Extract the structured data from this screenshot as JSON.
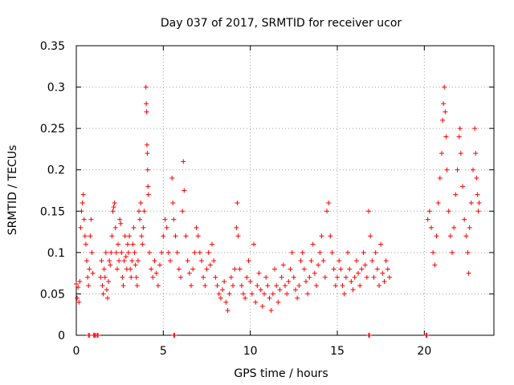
{
  "chart_data": {
    "type": "scatter",
    "title": "Day 037 of 2017, SRMTID for receiver ucor",
    "xlabel": "GPS time / hours",
    "ylabel": "SRMTID / TECUs",
    "xlim": [
      0,
      24
    ],
    "ylim": [
      0,
      0.35
    ],
    "xticks": [
      0,
      5,
      10,
      15,
      20
    ],
    "xtick_labels": [
      "0",
      "5",
      "10",
      "15",
      "20"
    ],
    "yticks": [
      0,
      0.05,
      0.1,
      0.15,
      0.2,
      0.25,
      0.3,
      0.35
    ],
    "ytick_labels": [
      "0",
      "0.05",
      "0.1",
      "0.15",
      "0.2",
      "0.25",
      "0.3",
      "0.35"
    ],
    "grid": true,
    "marker": "+",
    "color": "#ff0000",
    "series": [
      {
        "name": "SRMTID",
        "points": [
          [
            0.0,
            0.062
          ],
          [
            0.05,
            0.045
          ],
          [
            0.1,
            0.058
          ],
          [
            0.15,
            0.04
          ],
          [
            0.2,
            0.065
          ],
          [
            0.25,
            0.13
          ],
          [
            0.3,
            0.15
          ],
          [
            0.35,
            0.16
          ],
          [
            0.4,
            0.17
          ],
          [
            0.45,
            0.14
          ],
          [
            0.5,
            0.12
          ],
          [
            0.55,
            0.11
          ],
          [
            0.6,
            0.09
          ],
          [
            0.65,
            0.07
          ],
          [
            0.7,
            0.06
          ],
          [
            0.75,
            0.08
          ],
          [
            0.8,
            0.12
          ],
          [
            0.85,
            0.14
          ],
          [
            0.9,
            0.1
          ],
          [
            0.95,
            0.075
          ],
          [
            0.7,
            0.0
          ],
          [
            0.75,
            0.0
          ],
          [
            1.0,
            0.0
          ],
          [
            1.05,
            0.0
          ],
          [
            1.1,
            0.0
          ],
          [
            1.2,
            0.0
          ],
          [
            1.25,
            0.0
          ],
          [
            1.4,
            0.07
          ],
          [
            1.45,
            0.09
          ],
          [
            1.5,
            0.06
          ],
          [
            1.55,
            0.05
          ],
          [
            1.6,
            0.08
          ],
          [
            1.65,
            0.07
          ],
          [
            1.7,
            0.1
          ],
          [
            1.75,
            0.055
          ],
          [
            1.8,
            0.045
          ],
          [
            1.85,
            0.065
          ],
          [
            1.9,
            0.09
          ],
          [
            1.95,
            0.085
          ],
          [
            2.0,
            0.1
          ],
          [
            2.05,
            0.12
          ],
          [
            2.1,
            0.15
          ],
          [
            2.15,
            0.155
          ],
          [
            2.2,
            0.16
          ],
          [
            2.25,
            0.13
          ],
          [
            2.3,
            0.1
          ],
          [
            2.35,
            0.08
          ],
          [
            2.4,
            0.11
          ],
          [
            2.45,
            0.09
          ],
          [
            2.5,
            0.14
          ],
          [
            2.55,
            0.135
          ],
          [
            2.6,
            0.1
          ],
          [
            2.65,
            0.07
          ],
          [
            2.7,
            0.06
          ],
          [
            2.75,
            0.09
          ],
          [
            2.8,
            0.12
          ],
          [
            2.85,
            0.095
          ],
          [
            2.9,
            0.08
          ],
          [
            2.95,
            0.11
          ],
          [
            3.0,
            0.1
          ],
          [
            3.05,
            0.12
          ],
          [
            3.1,
            0.08
          ],
          [
            3.15,
            0.07
          ],
          [
            3.2,
            0.09
          ],
          [
            3.25,
            0.11
          ],
          [
            3.3,
            0.13
          ],
          [
            3.35,
            0.1
          ],
          [
            3.4,
            0.085
          ],
          [
            3.45,
            0.07
          ],
          [
            3.5,
            0.06
          ],
          [
            3.55,
            0.09
          ],
          [
            3.6,
            0.15
          ],
          [
            3.65,
            0.14
          ],
          [
            3.7,
            0.16
          ],
          [
            3.75,
            0.12
          ],
          [
            3.8,
            0.11
          ],
          [
            3.85,
            0.13
          ],
          [
            3.9,
            0.15
          ],
          [
            4.0,
            0.3
          ],
          [
            4.02,
            0.28
          ],
          [
            4.04,
            0.27
          ],
          [
            4.06,
            0.23
          ],
          [
            4.08,
            0.22
          ],
          [
            4.1,
            0.2
          ],
          [
            4.12,
            0.18
          ],
          [
            4.14,
            0.17
          ],
          [
            4.2,
            0.1
          ],
          [
            4.3,
            0.08
          ],
          [
            4.4,
            0.07
          ],
          [
            4.5,
            0.09
          ],
          [
            4.6,
            0.075
          ],
          [
            4.7,
            0.06
          ],
          [
            4.8,
            0.085
          ],
          [
            4.9,
            0.1
          ],
          [
            5.0,
            0.12
          ],
          [
            5.1,
            0.14
          ],
          [
            5.2,
            0.13
          ],
          [
            5.3,
            0.1
          ],
          [
            5.4,
            0.09
          ],
          [
            5.5,
            0.19
          ],
          [
            5.55,
            0.16
          ],
          [
            5.6,
            0.14
          ],
          [
            5.7,
            0.12
          ],
          [
            5.8,
            0.1
          ],
          [
            5.9,
            0.08
          ],
          [
            6.0,
            0.07
          ],
          [
            6.1,
            0.15
          ],
          [
            6.15,
            0.21
          ],
          [
            6.2,
            0.175
          ],
          [
            6.3,
            0.12
          ],
          [
            6.4,
            0.09
          ],
          [
            6.5,
            0.075
          ],
          [
            6.6,
            0.06
          ],
          [
            6.7,
            0.08
          ],
          [
            6.8,
            0.1
          ],
          [
            6.9,
            0.13
          ],
          [
            5.6,
            0.0
          ],
          [
            5.65,
            0.0
          ],
          [
            7.0,
            0.12
          ],
          [
            7.1,
            0.1
          ],
          [
            7.2,
            0.09
          ],
          [
            7.3,
            0.07
          ],
          [
            7.4,
            0.06
          ],
          [
            7.5,
            0.08
          ],
          [
            7.6,
            0.1
          ],
          [
            7.7,
            0.085
          ],
          [
            7.8,
            0.11
          ],
          [
            7.9,
            0.09
          ],
          [
            8.0,
            0.07
          ],
          [
            8.1,
            0.06
          ],
          [
            8.2,
            0.05
          ],
          [
            8.3,
            0.045
          ],
          [
            8.4,
            0.055
          ],
          [
            8.5,
            0.065
          ],
          [
            8.6,
            0.04
          ],
          [
            8.7,
            0.03
          ],
          [
            8.8,
            0.05
          ],
          [
            8.9,
            0.07
          ],
          [
            9.0,
            0.06
          ],
          [
            9.1,
            0.08
          ],
          [
            9.2,
            0.13
          ],
          [
            9.25,
            0.16
          ],
          [
            9.3,
            0.12
          ],
          [
            9.4,
            0.08
          ],
          [
            9.5,
            0.06
          ],
          [
            9.6,
            0.05
          ],
          [
            9.7,
            0.045
          ],
          [
            9.8,
            0.07
          ],
          [
            9.9,
            0.09
          ],
          [
            10.0,
            0.065
          ],
          [
            10.1,
            0.05
          ],
          [
            10.2,
            0.11
          ],
          [
            10.3,
            0.04
          ],
          [
            10.4,
            0.06
          ],
          [
            10.5,
            0.075
          ],
          [
            10.6,
            0.055
          ],
          [
            10.7,
            0.035
          ],
          [
            10.8,
            0.05
          ],
          [
            10.9,
            0.07
          ],
          [
            11.0,
            0.06
          ],
          [
            11.1,
            0.045
          ],
          [
            11.2,
            0.03
          ],
          [
            11.3,
            0.05
          ],
          [
            11.4,
            0.08
          ],
          [
            11.5,
            0.06
          ],
          [
            11.6,
            0.04
          ],
          [
            11.7,
            0.055
          ],
          [
            11.8,
            0.07
          ],
          [
            11.9,
            0.085
          ],
          [
            12.0,
            0.06
          ],
          [
            12.1,
            0.05
          ],
          [
            12.2,
            0.065
          ],
          [
            12.3,
            0.08
          ],
          [
            12.4,
            0.1
          ],
          [
            12.5,
            0.07
          ],
          [
            12.6,
            0.055
          ],
          [
            12.7,
            0.045
          ],
          [
            12.8,
            0.06
          ],
          [
            12.9,
            0.09
          ],
          [
            13.0,
            0.1
          ],
          [
            13.1,
            0.08
          ],
          [
            13.2,
            0.065
          ],
          [
            13.3,
            0.05
          ],
          [
            13.4,
            0.07
          ],
          [
            13.5,
            0.09
          ],
          [
            13.6,
            0.11
          ],
          [
            13.7,
            0.075
          ],
          [
            13.8,
            0.06
          ],
          [
            13.9,
            0.085
          ],
          [
            14.0,
            0.1
          ],
          [
            14.1,
            0.12
          ],
          [
            14.2,
            0.09
          ],
          [
            14.3,
            0.07
          ],
          [
            14.4,
            0.15
          ],
          [
            14.5,
            0.16
          ],
          [
            14.6,
            0.12
          ],
          [
            14.7,
            0.1
          ],
          [
            14.8,
            0.08
          ],
          [
            14.9,
            0.06
          ],
          [
            15.0,
            0.07
          ],
          [
            15.1,
            0.09
          ],
          [
            15.2,
            0.08
          ],
          [
            15.3,
            0.06
          ],
          [
            15.4,
            0.05
          ],
          [
            15.5,
            0.07
          ],
          [
            15.6,
            0.1
          ],
          [
            15.7,
            0.08
          ],
          [
            15.8,
            0.065
          ],
          [
            15.9,
            0.055
          ],
          [
            16.0,
            0.07
          ],
          [
            16.1,
            0.09
          ],
          [
            16.2,
            0.075
          ],
          [
            16.3,
            0.06
          ],
          [
            16.4,
            0.08
          ],
          [
            16.5,
            0.1
          ],
          [
            16.6,
            0.085
          ],
          [
            16.7,
            0.07
          ],
          [
            16.8,
            0.15
          ],
          [
            16.9,
            0.12
          ],
          [
            17.0,
            0.09
          ],
          [
            17.1,
            0.07
          ],
          [
            17.2,
            0.1
          ],
          [
            17.3,
            0.08
          ],
          [
            17.4,
            0.06
          ],
          [
            17.5,
            0.11
          ],
          [
            17.6,
            0.075
          ],
          [
            17.7,
            0.065
          ],
          [
            17.8,
            0.09
          ],
          [
            17.9,
            0.08
          ],
          [
            18.0,
            0.07
          ],
          [
            16.8,
            0.0
          ],
          [
            16.85,
            0.0
          ],
          [
            20.1,
            0.0
          ],
          [
            20.15,
            0.0
          ],
          [
            20.2,
            0.14
          ],
          [
            20.3,
            0.15
          ],
          [
            20.4,
            0.13
          ],
          [
            20.5,
            0.1
          ],
          [
            20.6,
            0.085
          ],
          [
            20.7,
            0.12
          ],
          [
            20.8,
            0.16
          ],
          [
            20.9,
            0.19
          ],
          [
            21.0,
            0.22
          ],
          [
            21.05,
            0.26
          ],
          [
            21.1,
            0.28
          ],
          [
            21.15,
            0.3
          ],
          [
            21.2,
            0.27
          ],
          [
            21.25,
            0.24
          ],
          [
            21.3,
            0.2
          ],
          [
            21.4,
            0.15
          ],
          [
            21.5,
            0.12
          ],
          [
            21.6,
            0.1
          ],
          [
            21.7,
            0.13
          ],
          [
            21.8,
            0.17
          ],
          [
            21.9,
            0.2
          ],
          [
            22.0,
            0.24
          ],
          [
            22.05,
            0.25
          ],
          [
            22.1,
            0.22
          ],
          [
            22.2,
            0.18
          ],
          [
            22.3,
            0.14
          ],
          [
            22.4,
            0.12
          ],
          [
            22.5,
            0.1
          ],
          [
            22.55,
            0.075
          ],
          [
            22.6,
            0.13
          ],
          [
            22.7,
            0.16
          ],
          [
            22.8,
            0.2
          ],
          [
            22.9,
            0.25
          ],
          [
            22.95,
            0.22
          ],
          [
            23.0,
            0.19
          ],
          [
            23.05,
            0.17
          ],
          [
            23.1,
            0.15
          ],
          [
            23.15,
            0.16
          ]
        ]
      }
    ]
  }
}
